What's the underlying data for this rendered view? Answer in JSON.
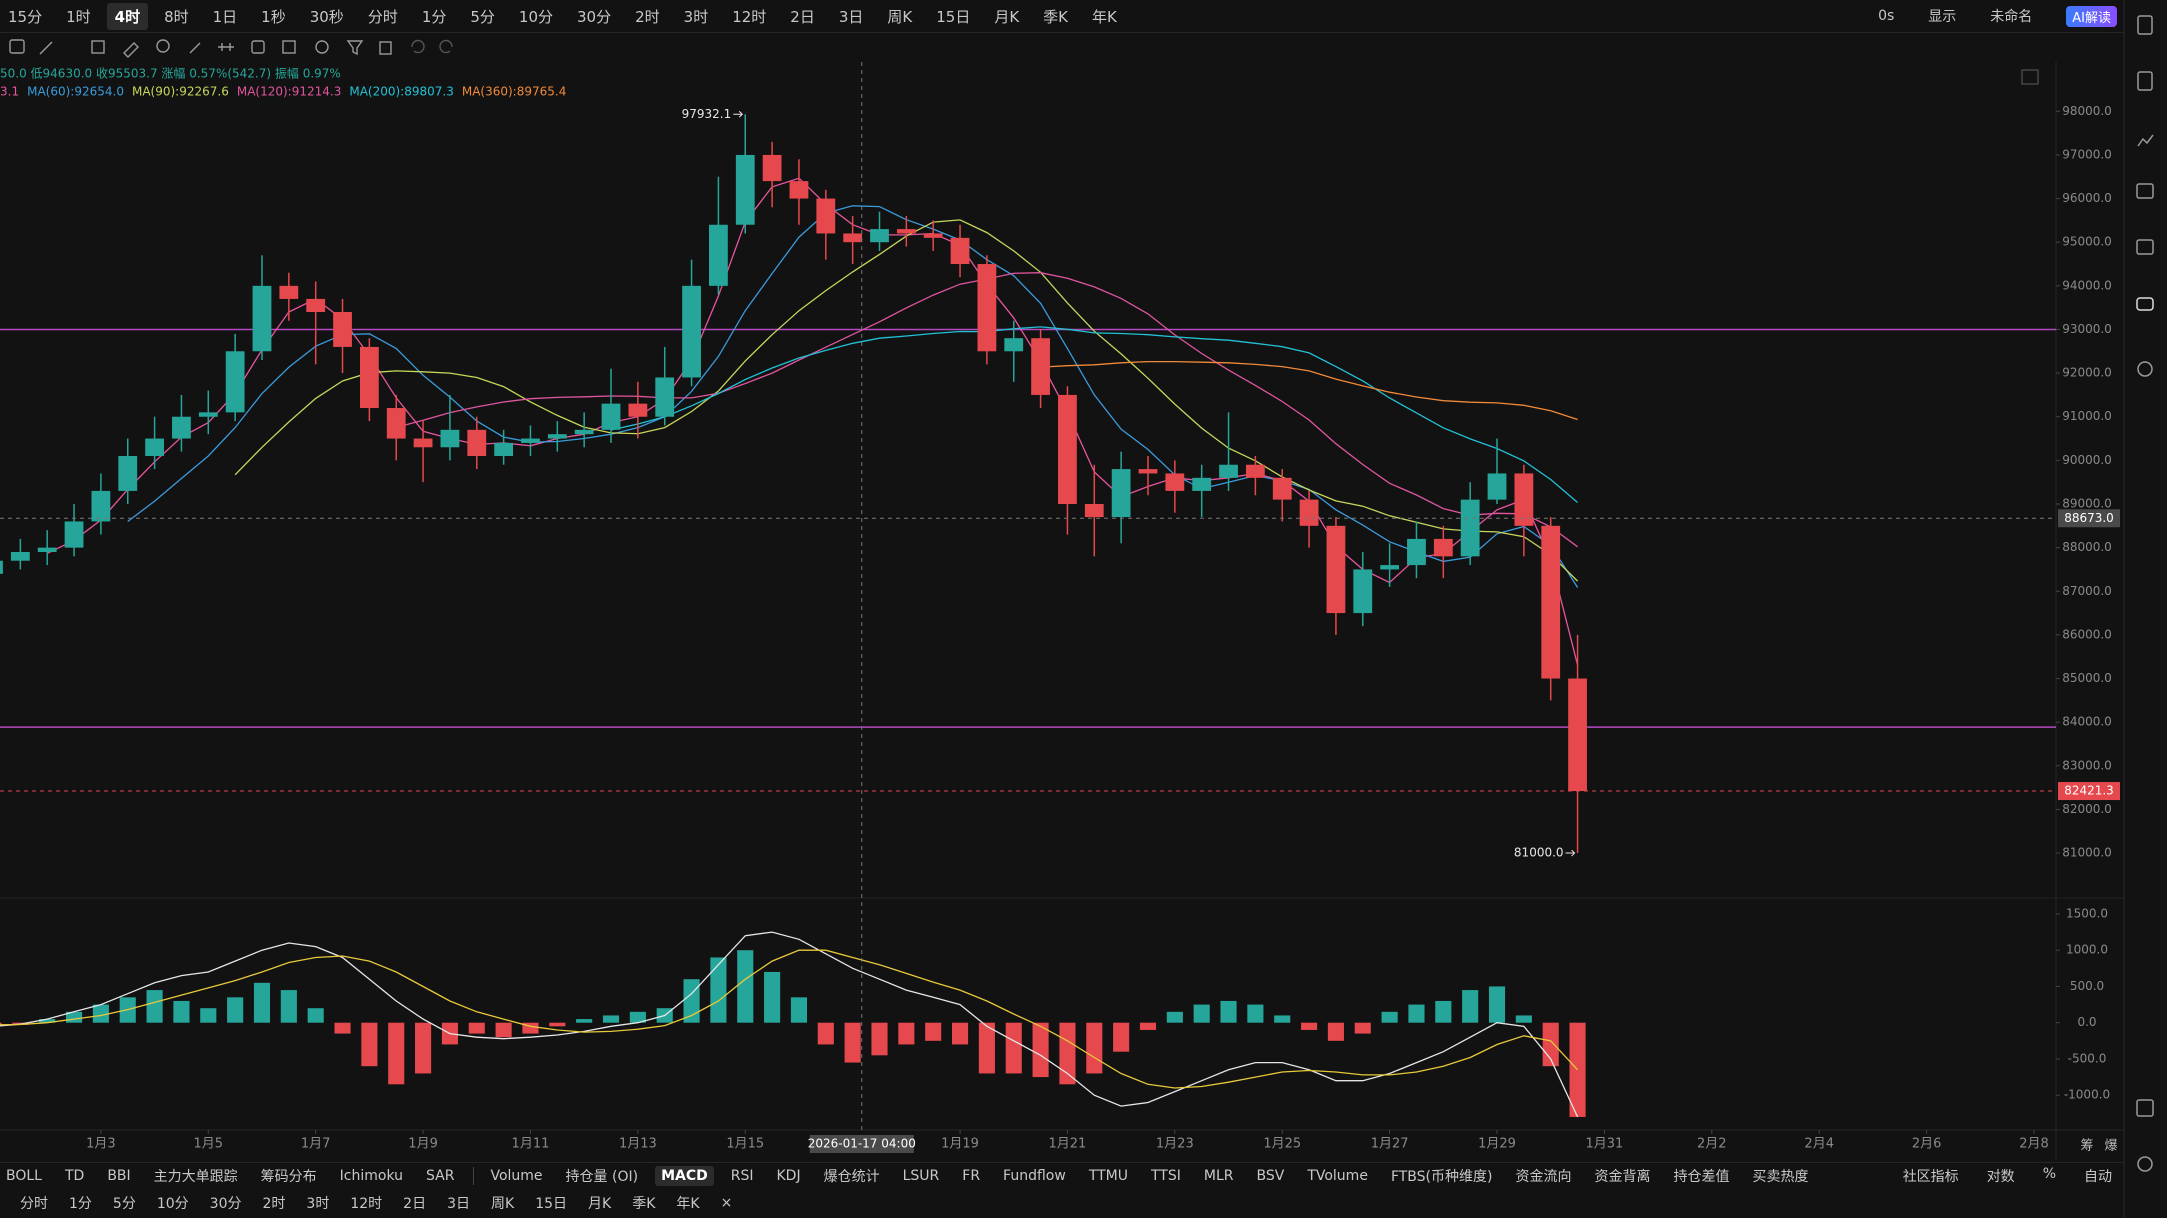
{
  "toolbar": {
    "intervals": [
      "15分",
      "1时",
      "4时",
      "8时",
      "1日",
      "1秒",
      "30秒",
      "分时",
      "1分",
      "5分",
      "10分",
      "30分",
      "2时",
      "3时",
      "12时",
      "2日",
      "3日",
      "周K",
      "15日",
      "月K",
      "季K",
      "年K"
    ],
    "active": 2,
    "right": [
      "0s",
      "显示",
      "未命名",
      "AI解读"
    ]
  },
  "info": {
    "ohlc": "50.0 低94630.0 收95503.7 涨幅 0.57%(542.7) 振幅 0.97%",
    "ma": [
      {
        "label": "3.1",
        "color": "#e8559f"
      },
      {
        "label": "MA(60):92654.0",
        "color": "#3a9bdc"
      },
      {
        "label": "MA(90):92267.6",
        "color": "#c8d65b"
      },
      {
        "label": "MA(120):91214.3",
        "color": "#e0559f"
      },
      {
        "label": "MA(200):89807.3",
        "color": "#22c1d6"
      },
      {
        "label": "MA(360):89765.4",
        "color": "#f08a3a"
      }
    ]
  },
  "chart_data": [
    {
      "type": "candlestick",
      "x": [
        1,
        1.5,
        2,
        2.5,
        3,
        3.5,
        4,
        4.5,
        5,
        5.5,
        6,
        6.5,
        7,
        7.5,
        8,
        8.5,
        9,
        9.5,
        10,
        10.5,
        11,
        11.5,
        12,
        12.5,
        13,
        13.5,
        14,
        14.5,
        15,
        15.5,
        16,
        16.5,
        17,
        17.5,
        18,
        18.5,
        19,
        19.5,
        20,
        20.5,
        21,
        21.5,
        22,
        22.5,
        23,
        23.5,
        24,
        24.5,
        25,
        25.5,
        26,
        26.5,
        27,
        27.5,
        28,
        28.5,
        29,
        29.5,
        30,
        30.5
      ],
      "open": [
        87400,
        87700,
        87900,
        88000,
        88600,
        89300,
        90100,
        90500,
        91000,
        91100,
        92500,
        94000,
        93700,
        93400,
        92600,
        91200,
        90500,
        90300,
        90700,
        90100,
        90400,
        90500,
        90600,
        90700,
        91300,
        91000,
        91900,
        94000,
        95400,
        97000,
        96400,
        96000,
        95200,
        95000,
        95300,
        95200,
        95100,
        94500,
        92500,
        92800,
        91500,
        89000,
        88700,
        89800,
        89700,
        89300,
        89600,
        89900,
        89600,
        89100,
        88500,
        86500,
        87500,
        87600,
        88200,
        87800,
        89100,
        89700,
        88500,
        85000
      ],
      "high": [
        88000,
        88200,
        88400,
        89000,
        89700,
        90500,
        91000,
        91500,
        91600,
        92900,
        94700,
        94300,
        94100,
        93700,
        92800,
        91500,
        90900,
        91500,
        91000,
        90700,
        90800,
        90900,
        91100,
        92100,
        91800,
        92600,
        94600,
        96500,
        97932.1,
        97300,
        96900,
        96200,
        95600,
        95700,
        95600,
        95500,
        95400,
        94700,
        93200,
        93000,
        91700,
        89900,
        90200,
        90100,
        90000,
        89900,
        91100,
        90100,
        89800,
        89300,
        88700,
        87900,
        88100,
        88600,
        88500,
        89500,
        90500,
        89900,
        88700,
        86000
      ],
      "low": [
        87100,
        87500,
        87600,
        87800,
        88300,
        89000,
        89800,
        90200,
        90600,
        90900,
        92300,
        93200,
        92200,
        92000,
        90900,
        90000,
        89500,
        90000,
        89800,
        89900,
        90100,
        90200,
        90300,
        90400,
        90500,
        90800,
        91700,
        93800,
        95200,
        95800,
        95400,
        94600,
        94500,
        94800,
        94900,
        94800,
        94200,
        92200,
        91800,
        91200,
        88300,
        87800,
        88100,
        89200,
        88800,
        88700,
        89300,
        89200,
        88600,
        88000,
        86000,
        86200,
        87100,
        87300,
        87300,
        87600,
        89000,
        87800,
        84500,
        81000
      ],
      "close": [
        87700,
        87900,
        88000,
        88600,
        89300,
        90100,
        90500,
        91000,
        91100,
        92500,
        94000,
        93700,
        93400,
        92600,
        91200,
        90500,
        90300,
        90700,
        90100,
        90400,
        90500,
        90600,
        90700,
        91300,
        91000,
        91900,
        94000,
        95400,
        97000,
        96400,
        96000,
        95200,
        95000,
        95300,
        95200,
        95100,
        94500,
        92500,
        92800,
        91500,
        89000,
        88700,
        89800,
        89700,
        89300,
        89600,
        89900,
        89600,
        89100,
        88500,
        86500,
        87500,
        87600,
        88200,
        87800,
        89100,
        89700,
        88500,
        85000,
        82421.3
      ],
      "up_color": "#26a69a",
      "down_color": "#e5484d",
      "xlim": [
        1.121,
        39.41
      ],
      "xticks": [
        1,
        {
          "value": 3,
          "label": "1月3"
        },
        {
          "value": 5,
          "label": "1月5"
        },
        {
          "value": 7,
          "label": "1月7"
        },
        {
          "value": 9,
          "label": "1月9"
        },
        {
          "value": 11,
          "label": "1月11"
        },
        {
          "value": 13,
          "label": "1月13"
        },
        {
          "value": 15,
          "label": "1月15"
        },
        {
          "value": 19,
          "label": "1月19"
        },
        {
          "value": 21,
          "label": "1月21"
        },
        {
          "value": 23,
          "label": "1月23"
        },
        {
          "value": 25,
          "label": "1月25"
        },
        {
          "value": 27,
          "label": "1月27"
        },
        {
          "value": 29,
          "label": "1月29"
        },
        {
          "value": 31,
          "label": "1月31"
        },
        {
          "value": 33,
          "label": "2月2"
        },
        {
          "value": 35,
          "label": "2月4"
        },
        {
          "value": 37,
          "label": "2月6"
        },
        {
          "value": 39,
          "label": "2月8"
        }
      ],
      "ylim": [
        79970,
        99130
      ],
      "yticks": [
        {
          "value": 98000,
          "label": "98000.0"
        },
        {
          "value": 97000,
          "label": "97000.0"
        },
        {
          "value": 96000,
          "label": "96000.0"
        },
        {
          "value": 95000,
          "label": "95000.0"
        },
        {
          "value": 94000,
          "label": "94000.0"
        },
        {
          "value": 93000,
          "label": "93000.0"
        },
        {
          "value": 92000,
          "label": "92000.0"
        },
        {
          "value": 91000,
          "label": "91000.0"
        },
        {
          "value": 90000,
          "label": "90000.0"
        },
        {
          "value": 89000,
          "label": "89000.0"
        },
        {
          "value": 88000,
          "label": "88000.0"
        },
        {
          "value": 87000,
          "label": "87000.0"
        },
        {
          "value": 86000,
          "label": "86000.0"
        },
        {
          "value": 85000,
          "label": "85000.0"
        },
        {
          "value": 84000,
          "label": "84000.0"
        },
        {
          "value": 83000,
          "label": "83000.0"
        },
        {
          "value": 82000,
          "label": "82000.0"
        },
        {
          "value": 81000,
          "label": "81000.0"
        }
      ],
      "hlines": [
        {
          "y": 93000,
          "color": "#b44ac0"
        },
        {
          "y": 83886,
          "color": "#b44ac0"
        }
      ],
      "annotations": [
        {
          "text": "97932.1",
          "x": 15,
          "y": 97932.1
        },
        {
          "text": "81000.0",
          "x": 30.5,
          "y": 81000
        }
      ],
      "crosshair": {
        "x": 17.17,
        "x_label": "2026-01-17 04:00",
        "y": 88673,
        "y_label": "88673.0"
      },
      "last_price": {
        "value": 82421.3,
        "label": "82421.3",
        "color": "#e5484d"
      },
      "axis_extra": [
        "筹",
        "爆"
      ]
    },
    {
      "type": "macd",
      "x": [
        1,
        1.5,
        2,
        2.5,
        3,
        3.5,
        4,
        4.5,
        5,
        5.5,
        6,
        6.5,
        7,
        7.5,
        8,
        8.5,
        9,
        9.5,
        10,
        10.5,
        11,
        11.5,
        12,
        12.5,
        13,
        13.5,
        14,
        14.5,
        15,
        15.5,
        16,
        16.5,
        17,
        17.5,
        18,
        18.5,
        19,
        19.5,
        20,
        20.5,
        21,
        21.5,
        22,
        22.5,
        23,
        23.5,
        24,
        24.5,
        25,
        25.5,
        26,
        26.5,
        27,
        27.5,
        28,
        28.5,
        29,
        29.5,
        30,
        30.5
      ],
      "histogram": [
        -50,
        -30,
        50,
        150,
        250,
        350,
        450,
        300,
        200,
        350,
        550,
        450,
        200,
        -150,
        -600,
        -850,
        -700,
        -300,
        -150,
        -200,
        -150,
        -50,
        50,
        100,
        150,
        200,
        600,
        900,
        1000,
        700,
        350,
        -300,
        -550,
        -450,
        -300,
        -250,
        -300,
        -700,
        -700,
        -750,
        -850,
        -700,
        -400,
        -100,
        150,
        250,
        300,
        250,
        100,
        -100,
        -250,
        -150,
        150,
        250,
        300,
        450,
        500,
        100,
        -600,
        -1300
      ],
      "dif": [
        -50,
        -20,
        50,
        150,
        250,
        400,
        550,
        650,
        700,
        850,
        1000,
        1100,
        1050,
        900,
        600,
        300,
        50,
        -150,
        -200,
        -220,
        -200,
        -170,
        -120,
        -50,
        0,
        100,
        400,
        800,
        1200,
        1250,
        1150,
        950,
        750,
        600,
        450,
        350,
        250,
        -50,
        -250,
        -450,
        -700,
        -1000,
        -1150,
        -1100,
        -950,
        -800,
        -650,
        -550,
        -550,
        -650,
        -800,
        -800,
        -700,
        -550,
        -400,
        -200,
        0,
        -50,
        -500,
        -1300
      ],
      "dea": [
        -30,
        -25,
        0,
        50,
        100,
        180,
        280,
        380,
        480,
        580,
        700,
        830,
        900,
        920,
        850,
        700,
        500,
        300,
        150,
        50,
        -50,
        -100,
        -130,
        -120,
        -90,
        -40,
        100,
        300,
        600,
        850,
        1000,
        1000,
        900,
        800,
        680,
        560,
        450,
        300,
        120,
        -50,
        -250,
        -480,
        -700,
        -850,
        -900,
        -880,
        -820,
        -750,
        -680,
        -660,
        -680,
        -720,
        -720,
        -680,
        -600,
        -480,
        -300,
        -180,
        -250,
        -650
      ],
      "dif_color": "#e6e6e6",
      "dea_color": "#e8c93a",
      "up_color": "#26a69a",
      "down_color": "#e5484d",
      "ylim": [
        -1480,
        1720
      ],
      "yticks": [
        {
          "value": 1500,
          "label": "1500.0"
        },
        {
          "value": 1000,
          "label": "1000.0"
        },
        {
          "value": 500,
          "label": "500.0"
        },
        {
          "value": 0,
          "label": "0.0"
        },
        {
          "value": -500,
          "label": "-500.0"
        },
        {
          "value": -1000,
          "label": "-1000.0"
        }
      ]
    }
  ],
  "indicator_bar": {
    "left": [
      "BOLL",
      "TD",
      "BBI",
      "主力大单跟踪",
      "筹码分布",
      "Ichimoku",
      "SAR"
    ],
    "main": [
      "Volume",
      "持仓量 (OI)",
      "MACD",
      "RSI",
      "KDJ",
      "爆仓统计",
      "LSUR",
      "FR",
      "Fundflow",
      "TTMU",
      "TTSI",
      "MLR",
      "BSV",
      "TVolume",
      "FTBS(币种维度)",
      "资金流向",
      "资金背离",
      "持仓差值",
      "买卖热度"
    ],
    "active": 2,
    "right": [
      "社区指标",
      "对数",
      "%",
      "自动"
    ]
  },
  "period_bar": [
    "分时",
    "1分",
    "5分",
    "10分",
    "30分",
    "2时",
    "3时",
    "12时",
    "2日",
    "3日",
    "周K",
    "15日",
    "月K",
    "季K",
    "年K",
    "×"
  ]
}
